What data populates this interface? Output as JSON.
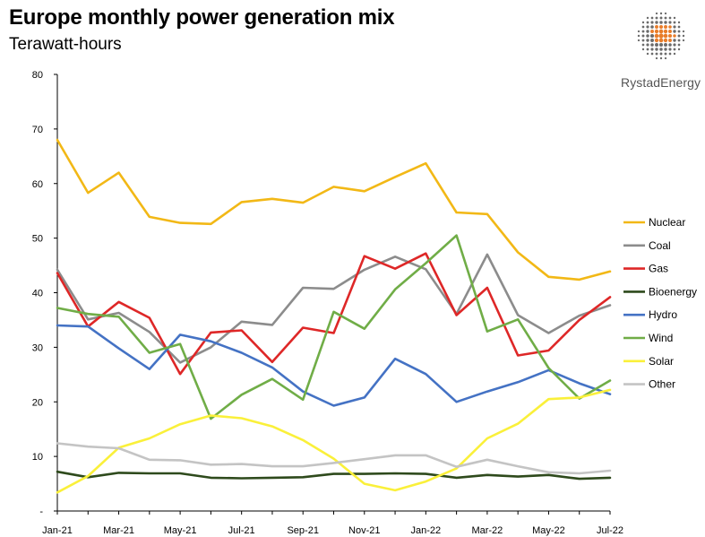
{
  "header": {
    "title": "Europe monthly power generation mix",
    "subtitle": "Terawatt-hours"
  },
  "brand": {
    "name": "RystadEnergy",
    "logo_icon": "dotted-globe-icon"
  },
  "chart_data": {
    "type": "line",
    "title": "Europe monthly power generation mix",
    "ylabel": "Terawatt-hours",
    "xlabel": "",
    "ylim": [
      0,
      80
    ],
    "yticks": [
      0,
      10,
      20,
      30,
      40,
      50,
      60,
      70,
      80
    ],
    "ytick_labels": [
      "-",
      "10",
      "20",
      "30",
      "40",
      "50",
      "60",
      "70",
      "80"
    ],
    "grid": false,
    "legend_position": "right",
    "categories": [
      "Jan-21",
      "Feb-21",
      "Mar-21",
      "Apr-21",
      "May-21",
      "Jun-21",
      "Jul-21",
      "Aug-21",
      "Sep-21",
      "Oct-21",
      "Nov-21",
      "Dec-21",
      "Jan-22",
      "Feb-22",
      "Mar-22",
      "Apr-22",
      "May-22",
      "Jun-22",
      "Jul-22"
    ],
    "xtick_labels": [
      "Jan-21",
      "Mar-21",
      "May-21",
      "Jul-21",
      "Sep-21",
      "Nov-21",
      "Jan-22",
      "Mar-22",
      "May-22",
      "Jul-22"
    ],
    "series": [
      {
        "name": "Nuclear",
        "color": "#F2B816",
        "values": [
          68.0,
          58.3,
          62.0,
          53.9,
          52.8,
          52.6,
          56.6,
          57.2,
          56.5,
          59.4,
          58.6,
          61.2,
          63.7,
          54.7,
          54.4,
          47.4,
          42.9,
          42.4,
          43.9
        ]
      },
      {
        "name": "Coal",
        "color": "#8C8C8C",
        "values": [
          44.2,
          35.1,
          36.3,
          32.8,
          27.2,
          30.0,
          34.7,
          34.1,
          40.9,
          40.7,
          44.2,
          46.6,
          44.3,
          36.1,
          47.0,
          35.9,
          32.6,
          35.8,
          37.7
        ]
      },
      {
        "name": "Gas",
        "color": "#DE2727",
        "values": [
          43.6,
          33.8,
          38.3,
          35.4,
          25.1,
          32.7,
          33.1,
          27.3,
          33.6,
          32.6,
          46.7,
          44.4,
          47.2,
          35.9,
          40.9,
          28.5,
          29.4,
          35.0,
          39.2
        ]
      },
      {
        "name": "Bioenergy",
        "color": "#2E4A1C",
        "values": [
          7.2,
          6.2,
          7.0,
          6.9,
          6.9,
          6.1,
          6.0,
          6.1,
          6.2,
          6.8,
          6.8,
          6.9,
          6.8,
          6.1,
          6.6,
          6.3,
          6.6,
          5.9,
          6.1
        ]
      },
      {
        "name": "Hydro",
        "color": "#4472C4",
        "values": [
          34.0,
          33.8,
          29.8,
          26.0,
          32.3,
          31.1,
          29.0,
          26.3,
          21.9,
          19.3,
          20.8,
          27.9,
          25.1,
          20.0,
          21.9,
          23.6,
          25.8,
          23.4,
          21.4
        ]
      },
      {
        "name": "Wind",
        "color": "#70AD47",
        "values": [
          37.2,
          36.1,
          35.6,
          29.0,
          30.6,
          16.9,
          21.3,
          24.2,
          20.4,
          36.5,
          33.4,
          40.6,
          45.4,
          50.5,
          32.9,
          35.1,
          26.2,
          20.6,
          23.9
        ]
      },
      {
        "name": "Solar",
        "color": "#FAF03A",
        "values": [
          3.4,
          6.4,
          11.6,
          13.3,
          15.9,
          17.5,
          17.0,
          15.5,
          13.0,
          9.6,
          5.0,
          3.8,
          5.4,
          7.8,
          13.3,
          16.0,
          20.5,
          20.8,
          22.2
        ]
      },
      {
        "name": "Other",
        "color": "#C4C4C4",
        "values": [
          12.4,
          11.8,
          11.5,
          9.4,
          9.3,
          8.5,
          8.6,
          8.2,
          8.2,
          8.8,
          9.5,
          10.2,
          10.2,
          8.1,
          9.4,
          8.2,
          7.1,
          6.9,
          7.4
        ]
      }
    ]
  }
}
